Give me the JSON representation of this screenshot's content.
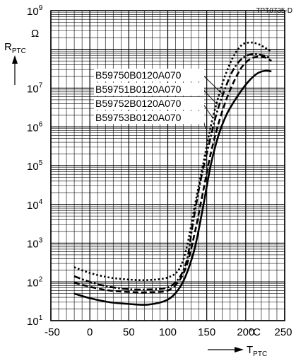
{
  "chart_data": {
    "type": "line",
    "figure_id": "TPT0735-D",
    "y_axis": {
      "symbol": "R",
      "subscript": "PTC",
      "unit": "Ω",
      "scale": "log",
      "range": [
        10,
        1000000000
      ],
      "tick_labels": [
        {
          "base": "10",
          "exp": "1"
        },
        {
          "base": "10",
          "exp": "2"
        },
        {
          "base": "10",
          "exp": "3"
        },
        {
          "base": "10",
          "exp": "4"
        },
        {
          "base": "10",
          "exp": "5"
        },
        {
          "base": "10",
          "exp": "6"
        },
        {
          "base": "10",
          "exp": "7"
        },
        {
          "base": "10",
          "exp": "9"
        }
      ]
    },
    "x_axis": {
      "symbol": "T",
      "subscript": "PTC",
      "unit": "°C",
      "range": [
        -50,
        250
      ],
      "ticks": [
        -50,
        0,
        50,
        100,
        150,
        200,
        250
      ],
      "tick_labels": [
        "-50",
        "0",
        "50",
        "100",
        "150",
        "200",
        "250"
      ]
    },
    "grid": true,
    "legend_position": "upper-middle",
    "series": [
      {
        "name": "B59750B0120A070",
        "style": "dotted",
        "points": [
          [
            -20,
            240
          ],
          [
            0,
            170
          ],
          [
            25,
            130
          ],
          [
            50,
            115
          ],
          [
            75,
            112
          ],
          [
            100,
            130
          ],
          [
            115,
            220
          ],
          [
            125,
            900
          ],
          [
            135,
            10000
          ],
          [
            145,
            100000
          ],
          [
            155,
            1000000
          ],
          [
            165,
            6000000
          ],
          [
            175,
            25000000
          ],
          [
            185,
            70000000
          ],
          [
            195,
            130000000
          ],
          [
            205,
            150000000
          ],
          [
            215,
            140000000
          ],
          [
            225,
            110000000
          ],
          [
            233,
            85000000
          ]
        ]
      },
      {
        "name": "B59751B0120A070",
        "style": "dash-dot",
        "points": [
          [
            -20,
            140
          ],
          [
            0,
            100
          ],
          [
            25,
            75
          ],
          [
            50,
            65
          ],
          [
            75,
            64
          ],
          [
            100,
            72
          ],
          [
            115,
            130
          ],
          [
            125,
            400
          ],
          [
            132,
            3000
          ],
          [
            142,
            40000
          ],
          [
            152,
            300000
          ],
          [
            162,
            2000000
          ],
          [
            172,
            8000000
          ],
          [
            182,
            25000000
          ],
          [
            192,
            50000000
          ],
          [
            202,
            70000000
          ],
          [
            212,
            75000000
          ],
          [
            222,
            70000000
          ],
          [
            232,
            60000000
          ]
        ]
      },
      {
        "name": "B59752B0120A070",
        "style": "dashed",
        "points": [
          [
            -20,
            95
          ],
          [
            0,
            75
          ],
          [
            25,
            60
          ],
          [
            50,
            55
          ],
          [
            75,
            54
          ],
          [
            100,
            60
          ],
          [
            115,
            110
          ],
          [
            125,
            300
          ],
          [
            135,
            2000
          ],
          [
            145,
            20000
          ],
          [
            155,
            200000
          ],
          [
            165,
            1200000
          ],
          [
            175,
            5000000
          ],
          [
            185,
            15000000
          ],
          [
            195,
            35000000
          ],
          [
            205,
            55000000
          ],
          [
            215,
            65000000
          ],
          [
            225,
            62000000
          ],
          [
            233,
            50000000
          ]
        ]
      },
      {
        "name": "B59753B0120A070",
        "style": "solid",
        "points": [
          [
            -20,
            50
          ],
          [
            0,
            38
          ],
          [
            25,
            30
          ],
          [
            50,
            27
          ],
          [
            75,
            26
          ],
          [
            100,
            35
          ],
          [
            115,
            70
          ],
          [
            125,
            180
          ],
          [
            135,
            800
          ],
          [
            145,
            8000
          ],
          [
            155,
            100000
          ],
          [
            165,
            600000
          ],
          [
            175,
            2000000
          ],
          [
            185,
            4500000
          ],
          [
            195,
            9000000
          ],
          [
            205,
            16000000
          ],
          [
            215,
            24000000
          ],
          [
            225,
            28000000
          ],
          [
            233,
            27000000
          ]
        ]
      }
    ]
  }
}
